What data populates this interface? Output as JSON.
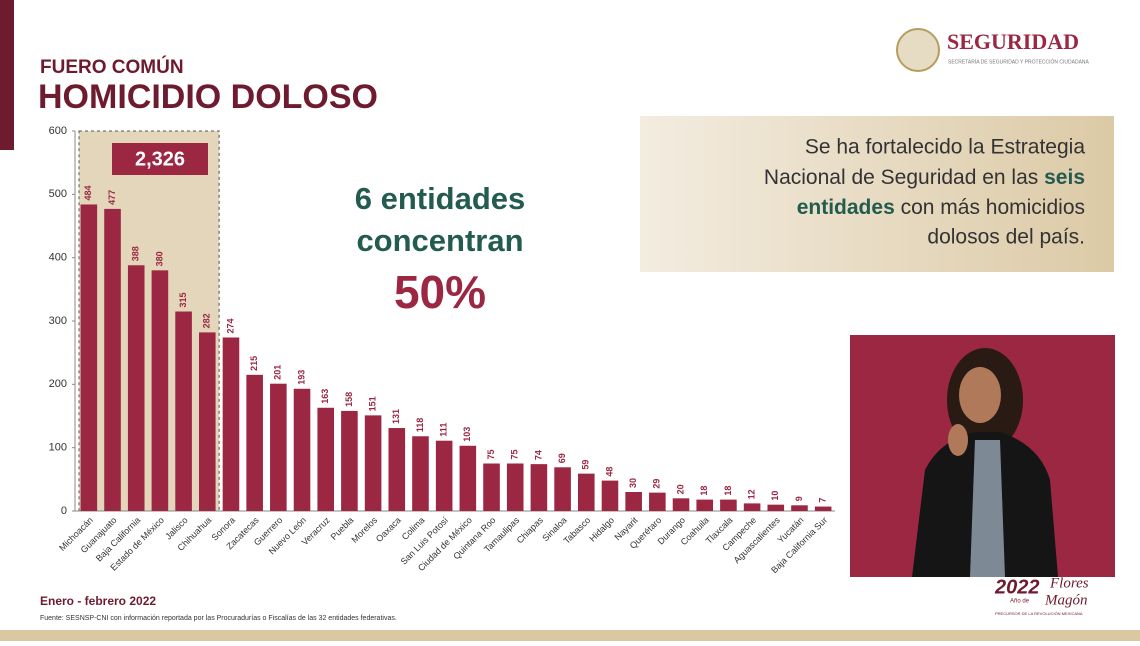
{
  "chart_data": {
    "type": "bar",
    "subtitle": "FUERO COMÚN",
    "title": "HOMICIDIO DOLOSO",
    "categories": [
      "Michoacán",
      "Guanajuato",
      "Baja California",
      "Estado de México",
      "Jalisco",
      "Chihuahua",
      "Sonora",
      "Zacatecas",
      "Guerrero",
      "Nuevo León",
      "Veracruz",
      "Puebla",
      "Morelos",
      "Oaxaca",
      "Colima",
      "San Luis Potosí",
      "Ciudad de México",
      "Quintana Roo",
      "Tamaulipas",
      "Chiapas",
      "Sinaloa",
      "Tabasco",
      "Hidalgo",
      "Nayarit",
      "Querétaro",
      "Durango",
      "Coahuila",
      "Tlaxcala",
      "Campeche",
      "Aguascalientes",
      "Yucatán",
      "Baja California Sur"
    ],
    "values": [
      484,
      477,
      388,
      380,
      315,
      282,
      274,
      215,
      201,
      193,
      163,
      158,
      151,
      131,
      118,
      111,
      103,
      75,
      75,
      74,
      69,
      59,
      48,
      30,
      29,
      20,
      18,
      18,
      12,
      10,
      9,
      7
    ],
    "color": "#9b2743",
    "ylim": [
      0,
      600
    ],
    "yticks": [
      0,
      100,
      200,
      300,
      400,
      500,
      600
    ],
    "grid": false,
    "highlight_total": {
      "value": 2326,
      "label": "2,326"
    },
    "annotation": {
      "line1": "6 entidades",
      "line2": "concentran",
      "line3": "50%"
    },
    "period": "Enero - febrero 2022",
    "source": "Fuente: SESNSP-CNI con información reportada por las Procuradurías o Fiscalías de las 32 entidades federativas."
  },
  "text_box": {
    "line1": "Se ha fortalecido la Estrategia",
    "line2": "Nacional de Seguridad en las",
    "line2_bold": "seis",
    "line3_bold": "entidades",
    "line3": "con más homicidios",
    "line4": "dolosos del país."
  },
  "logo": {
    "name": "SEGURIDAD",
    "subtitle": "SECRETARÍA DE SEGURIDAD Y PROTECCIÓN CIUDADANA"
  },
  "year_logo": {
    "year": "2022",
    "label": "Año de",
    "name1": "Flores",
    "name2": "Magón",
    "caption": "PRECURSOR DE LA REVOLUCIÓN MEXICANA"
  }
}
